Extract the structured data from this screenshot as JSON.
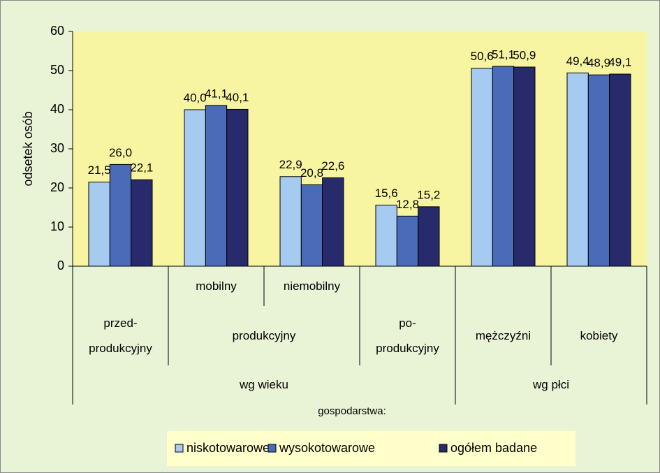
{
  "chart_data": {
    "type": "bar",
    "y_label": "odsetek osób",
    "legend_title": "gospodarstwa:",
    "category_tree": [
      {
        "name": "wg wieku",
        "children": [
          {
            "name": "przed-\nprodukcyjny"
          },
          {
            "name": "produkcyjny",
            "children": [
              {
                "name": "mobilny"
              },
              {
                "name": "niemobilny"
              }
            ]
          },
          {
            "name": "po-\nprodukcyjny"
          }
        ]
      },
      {
        "name": "wg płci",
        "children": [
          {
            "name": "mężczyźni"
          },
          {
            "name": "kobiety"
          }
        ]
      }
    ],
    "series": [
      {
        "name": "niskotowarowe",
        "color": "#a6caf0",
        "values": [
          21.5,
          40.0,
          22.9,
          15.6,
          50.6,
          49.4
        ],
        "value_labels": [
          "21,5",
          "40,0",
          "22,9",
          "15,6",
          "50,6",
          "49,4"
        ]
      },
      {
        "name": "wysokotowarowe",
        "color": "#4a6cb8",
        "values": [
          26.0,
          41.1,
          20.8,
          12.8,
          51.1,
          48.9
        ],
        "value_labels": [
          "26,0",
          "41,1",
          "20,8",
          "12,8",
          "51,1",
          "48,9"
        ]
      },
      {
        "name": "ogółem badane",
        "color": "#272b6c",
        "values": [
          22.1,
          40.1,
          22.6,
          15.2,
          50.9,
          49.1
        ],
        "value_labels": [
          "22,1",
          "40,1",
          "22,6",
          "15,2",
          "50,9",
          "49,1"
        ]
      }
    ],
    "ylim": [
      0,
      60
    ],
    "yticks": [
      0,
      10,
      20,
      30,
      40,
      50,
      60
    ],
    "grid": false
  }
}
